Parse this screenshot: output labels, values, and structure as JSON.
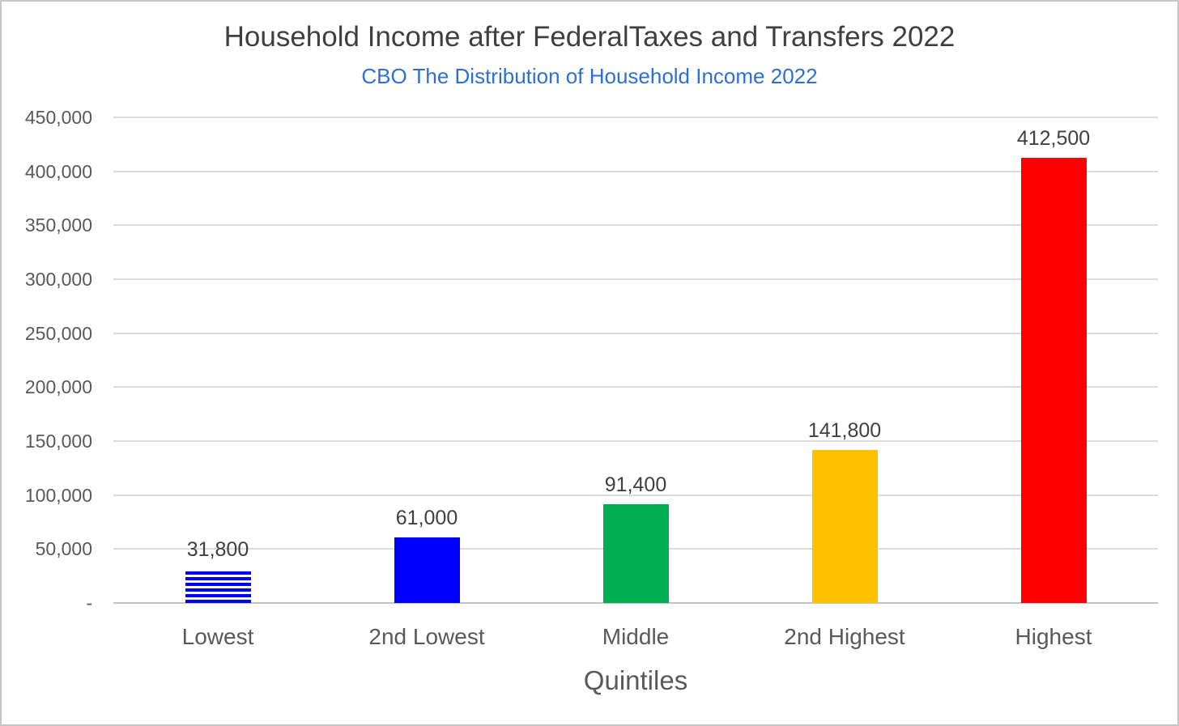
{
  "chart_data": {
    "type": "bar",
    "title": "Household Income after FederalTaxes and Transfers 2022",
    "subtitle": "CBO The Distribution of Household Income 2022",
    "categories": [
      "Lowest",
      "2nd Lowest",
      "Middle",
      "2nd Highest",
      "Highest"
    ],
    "values": [
      31800,
      61000,
      91400,
      141800,
      412500
    ],
    "value_labels": [
      "31,800",
      "61,000",
      "91,400",
      "141,800",
      "412,500"
    ],
    "bar_colors": [
      "#0000fe",
      "#0000fe",
      "#00ad50",
      "#ffc000",
      "#ff0000"
    ],
    "bar_styles": [
      "horizontal-stripes",
      "solid",
      "solid",
      "solid",
      "solid"
    ],
    "xlabel": "Quintiles",
    "ylabel": "",
    "ylim": [
      0,
      450000
    ],
    "ytick_values": [
      450000,
      400000,
      350000,
      300000,
      250000,
      200000,
      150000,
      100000,
      50000,
      0
    ],
    "ytick_labels": [
      "450,000",
      "400,000",
      "350,000",
      "300,000",
      "250,000",
      "200,000",
      "150,000",
      "100,000",
      "50,000",
      "-"
    ],
    "grid": "horizontal",
    "legend": "none",
    "colors": {
      "title_text": "#3f3f3f",
      "subtitle_text": "#2e6fd4",
      "axis_text": "#595959",
      "data_label_text": "#404040",
      "gridline": "#dcdcdc",
      "axis_line": "#c3c3c3",
      "background": "#ffffff"
    }
  }
}
